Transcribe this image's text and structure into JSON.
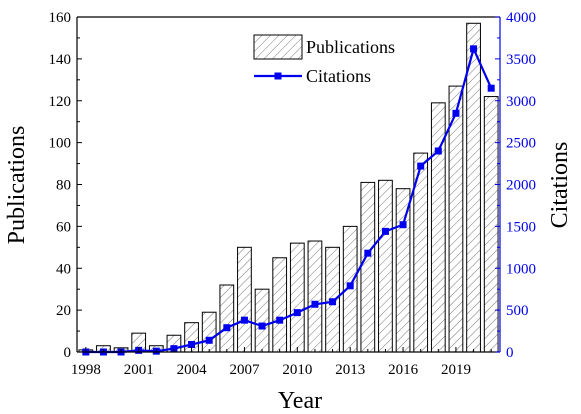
{
  "chart_data": {
    "type": "bar",
    "xlabel": "Year",
    "ylabel": "Publications",
    "y2label": "Citations",
    "x": [
      1998,
      1999,
      2000,
      2001,
      2002,
      2003,
      2004,
      2005,
      2006,
      2007,
      2008,
      2009,
      2010,
      2011,
      2012,
      2013,
      2014,
      2015,
      2016,
      2017,
      2018,
      2019,
      2020,
      2021
    ],
    "xticks": [
      "1998",
      "2001",
      "2004",
      "2007",
      "2010",
      "2013",
      "2016",
      "2019"
    ],
    "ylim": [
      0,
      160
    ],
    "yticks": [
      "0",
      "20",
      "40",
      "60",
      "80",
      "100",
      "120",
      "140",
      "160"
    ],
    "y2lim": [
      0,
      4000
    ],
    "y2ticks": [
      "0",
      "500",
      "1000",
      "1500",
      "2000",
      "2500",
      "3000",
      "3500",
      "4000"
    ],
    "series": [
      {
        "name": "Publications",
        "type": "bar",
        "axis": "left",
        "pattern": "hatched",
        "values": [
          1,
          3,
          2,
          9,
          3,
          8,
          14,
          19,
          32,
          50,
          30,
          45,
          52,
          53,
          50,
          60,
          81,
          82,
          78,
          95,
          119,
          127,
          157,
          122
        ]
      },
      {
        "name": "Citations",
        "type": "line",
        "axis": "right",
        "marker": "square",
        "color": "#0000ee",
        "values": [
          0,
          0,
          0,
          20,
          10,
          40,
          90,
          140,
          290,
          380,
          310,
          380,
          470,
          570,
          600,
          790,
          1180,
          1440,
          1520,
          2220,
          2400,
          2850,
          3620,
          3150
        ]
      }
    ],
    "legend": {
      "position": "top-right"
    }
  }
}
